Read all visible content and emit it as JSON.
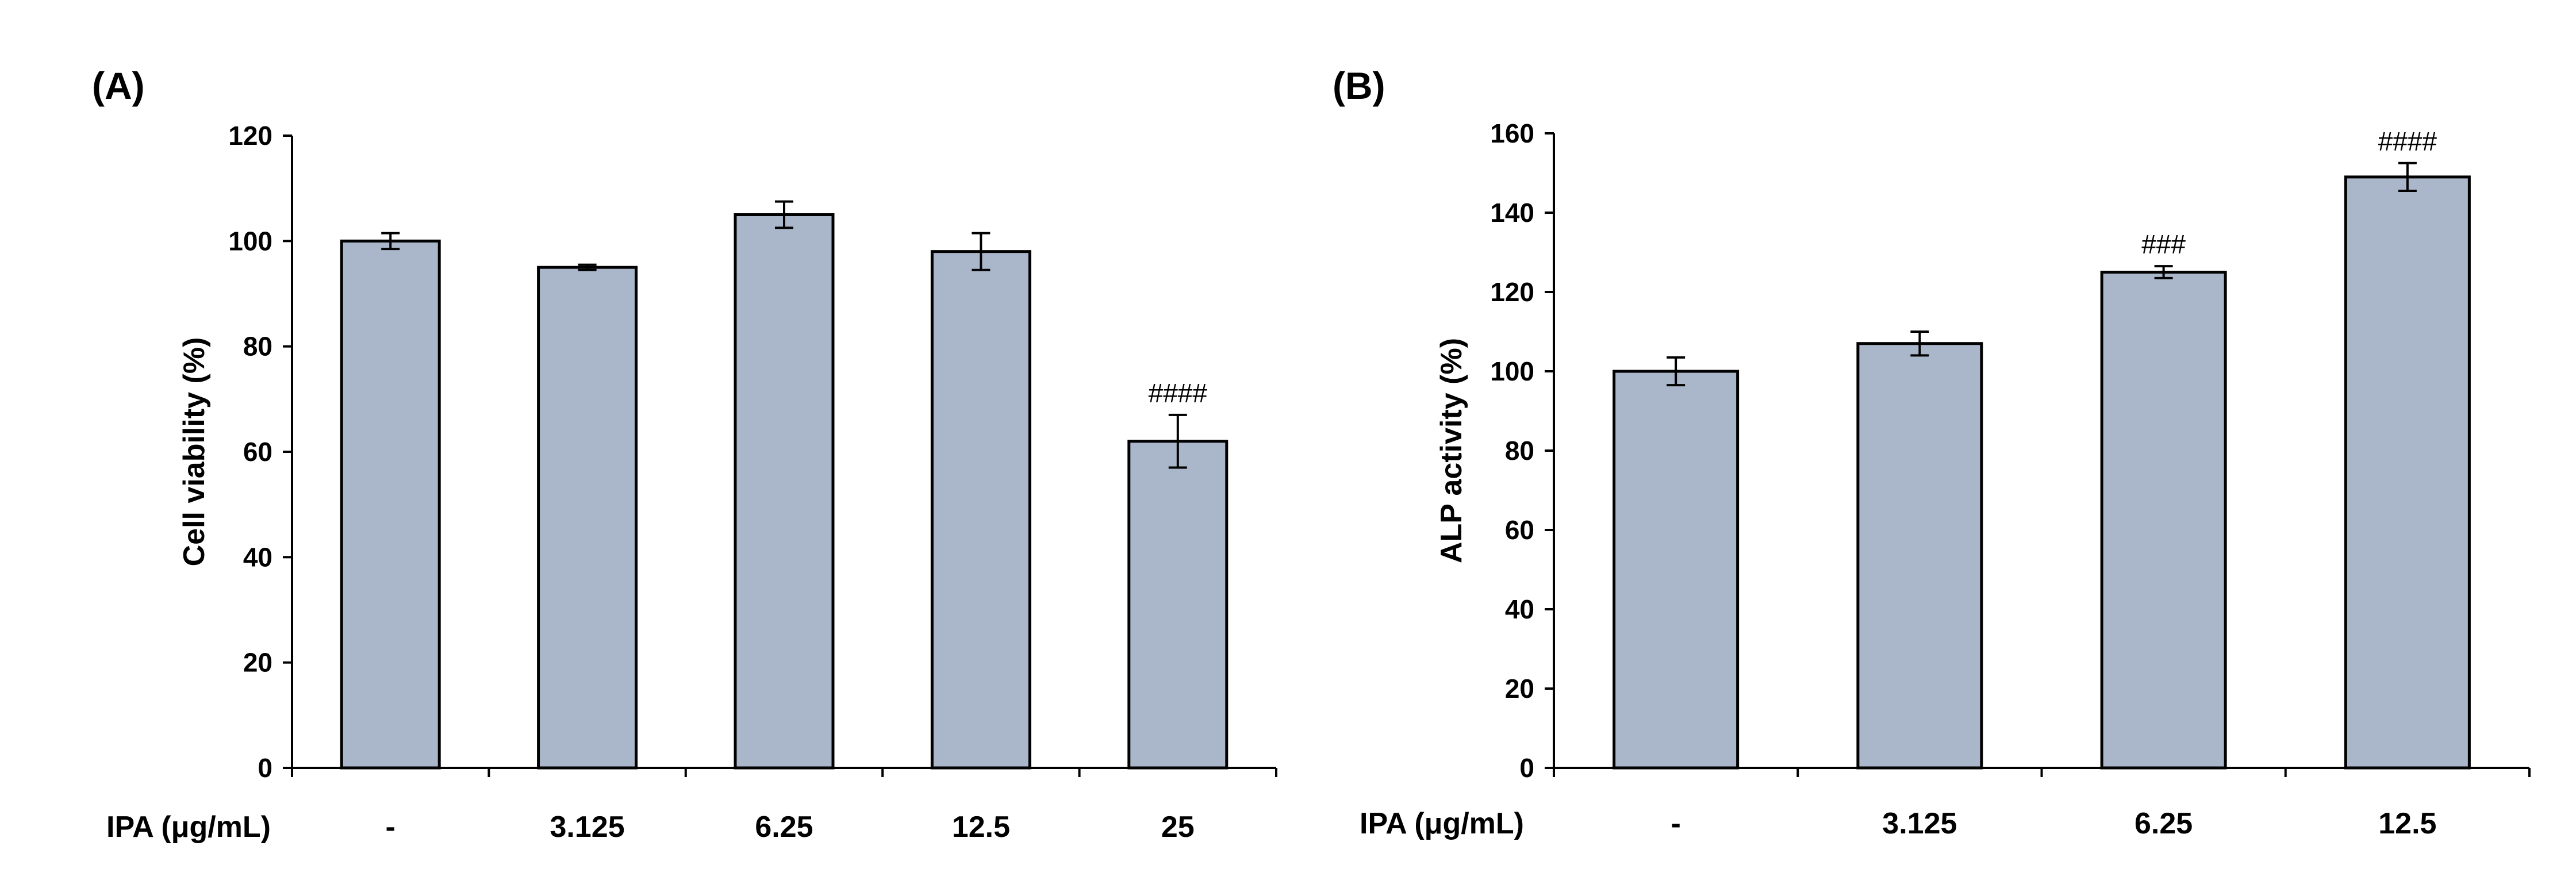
{
  "bar_color": "#aab7cb",
  "chart_data": [
    {
      "type": "bar",
      "panel_label": "(A)",
      "title": "",
      "xlabel": "IPA (μg/mL)",
      "ylabel": "Cell viability (%)",
      "ylim": [
        0,
        120
      ],
      "yticks": [
        0,
        20,
        40,
        60,
        80,
        100,
        120
      ],
      "categories": [
        "-",
        "3.125",
        "6.25",
        "12.5",
        "25"
      ],
      "values": [
        100,
        95,
        105,
        98,
        62
      ],
      "errors": [
        1.5,
        0.5,
        2.5,
        3.5,
        5
      ],
      "annotations": [
        "",
        "",
        "",
        "",
        "####"
      ]
    },
    {
      "type": "bar",
      "panel_label": "(B)",
      "title": "",
      "xlabel": "IPA (μg/mL)",
      "ylabel": "ALP activity (%)",
      "ylim": [
        0,
        160
      ],
      "yticks": [
        0,
        20,
        40,
        60,
        80,
        100,
        120,
        140,
        160
      ],
      "categories": [
        "-",
        "3.125",
        "6.25",
        "12.5"
      ],
      "values": [
        100,
        107,
        125,
        149
      ],
      "errors": [
        3.5,
        3,
        1.5,
        3.5
      ],
      "annotations": [
        "",
        "",
        "###",
        "####"
      ]
    }
  ]
}
